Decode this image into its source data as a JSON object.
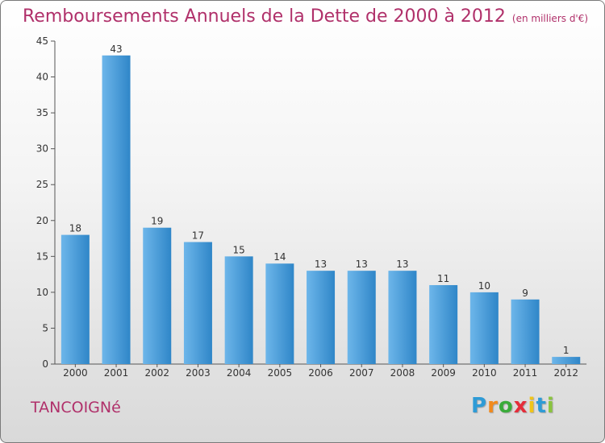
{
  "title": "Remboursements Annuels de la Dette de 2000 à 2012",
  "unit": "(en milliers d'€)",
  "commune": "TANCOIGNé",
  "logo": {
    "letters": [
      "P",
      "r",
      "o",
      "x",
      "i",
      "t",
      "i"
    ],
    "colors": [
      "#2e9bd6",
      "#f18a1d",
      "#3aab3a",
      "#e52d3a",
      "#f0c419",
      "#2e9bd6",
      "#8ac43f"
    ]
  },
  "colors": {
    "bar_light": "#6db6ea",
    "bar_dark": "#2f86c8",
    "title": "#b0306a"
  },
  "chart_data": {
    "type": "bar",
    "title": "Remboursements Annuels de la Dette de 2000 à 2012",
    "xlabel": "",
    "ylabel": "",
    "categories": [
      "2000",
      "2001",
      "2002",
      "2003",
      "2004",
      "2005",
      "2006",
      "2007",
      "2008",
      "2009",
      "2010",
      "2011",
      "2012"
    ],
    "values": [
      18,
      43,
      19,
      17,
      15,
      14,
      13,
      13,
      13,
      11,
      10,
      9,
      1
    ],
    "ylim": [
      0,
      45
    ],
    "yticks": [
      0,
      5,
      10,
      15,
      20,
      25,
      30,
      35,
      40,
      45
    ],
    "grid": false
  }
}
